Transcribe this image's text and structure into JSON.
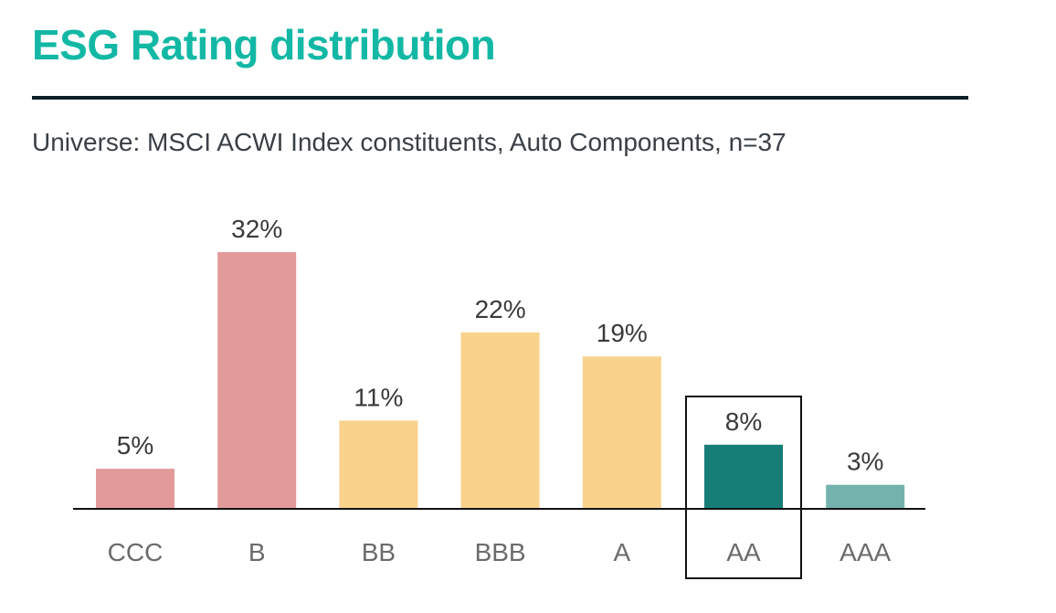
{
  "colors": {
    "title": "#13b8a5",
    "rule": "#0d1f24",
    "laggard": "#e39a9a",
    "average": "#f9d28c",
    "leader_dark": "#177e77",
    "leader_light": "#74b3ad",
    "axis": "#111111",
    "highlight_box": "#111111"
  },
  "chart_data": {
    "type": "bar",
    "title": "ESG Rating distribution",
    "subtitle": "Universe: MSCI ACWI Index constituents, Auto Components, n=37",
    "categories": [
      "CCC",
      "B",
      "BB",
      "BBB",
      "A",
      "AA",
      "AAA"
    ],
    "values": [
      5,
      32,
      11,
      22,
      19,
      8,
      3
    ],
    "value_labels": [
      "5%",
      "32%",
      "11%",
      "22%",
      "19%",
      "8%",
      "3%"
    ],
    "bar_colors": [
      "#e39a9a",
      "#e39a9a",
      "#f9d28c",
      "#f9d28c",
      "#f9d28c",
      "#177e77",
      "#74b3ad"
    ],
    "highlighted_category": "AA",
    "ylim": [
      0,
      32
    ],
    "grid": false,
    "legend": "none"
  }
}
